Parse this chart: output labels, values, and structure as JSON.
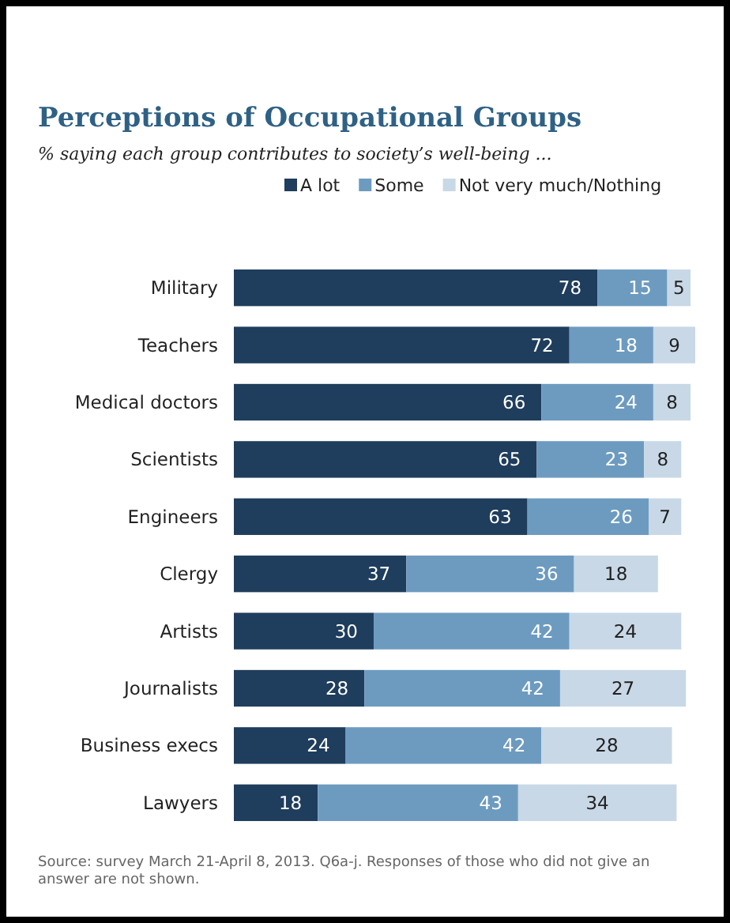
{
  "chart_data": {
    "type": "bar",
    "orientation": "horizontal",
    "stacked": true,
    "data_labels": true,
    "legend": "top",
    "title": "Perceptions of Occupational Groups",
    "subtitle": "% saying each group contributes to society’s well-being ...",
    "categories": [
      "Military",
      "Teachers",
      "Medical doctors",
      "Scientists",
      "Engineers",
      "Clergy",
      "Artists",
      "Journalists",
      "Business execs",
      "Lawyers"
    ],
    "series": [
      {
        "name": "A lot",
        "color": "#1f3d5c",
        "values": [
          78,
          72,
          66,
          65,
          63,
          37,
          30,
          28,
          24,
          18
        ]
      },
      {
        "name": "Some",
        "color": "#6d9bc0",
        "values": [
          15,
          18,
          24,
          23,
          26,
          36,
          42,
          42,
          42,
          43
        ]
      },
      {
        "name": "Not very much/Nothing",
        "color": "#c8d8e6",
        "values": [
          5,
          9,
          8,
          8,
          7,
          18,
          24,
          27,
          28,
          34
        ]
      }
    ],
    "annotations": [
      "Source: survey March 21-April 8, 2013. Q6a-j. Responses of those who did not give an answer are not shown."
    ]
  }
}
